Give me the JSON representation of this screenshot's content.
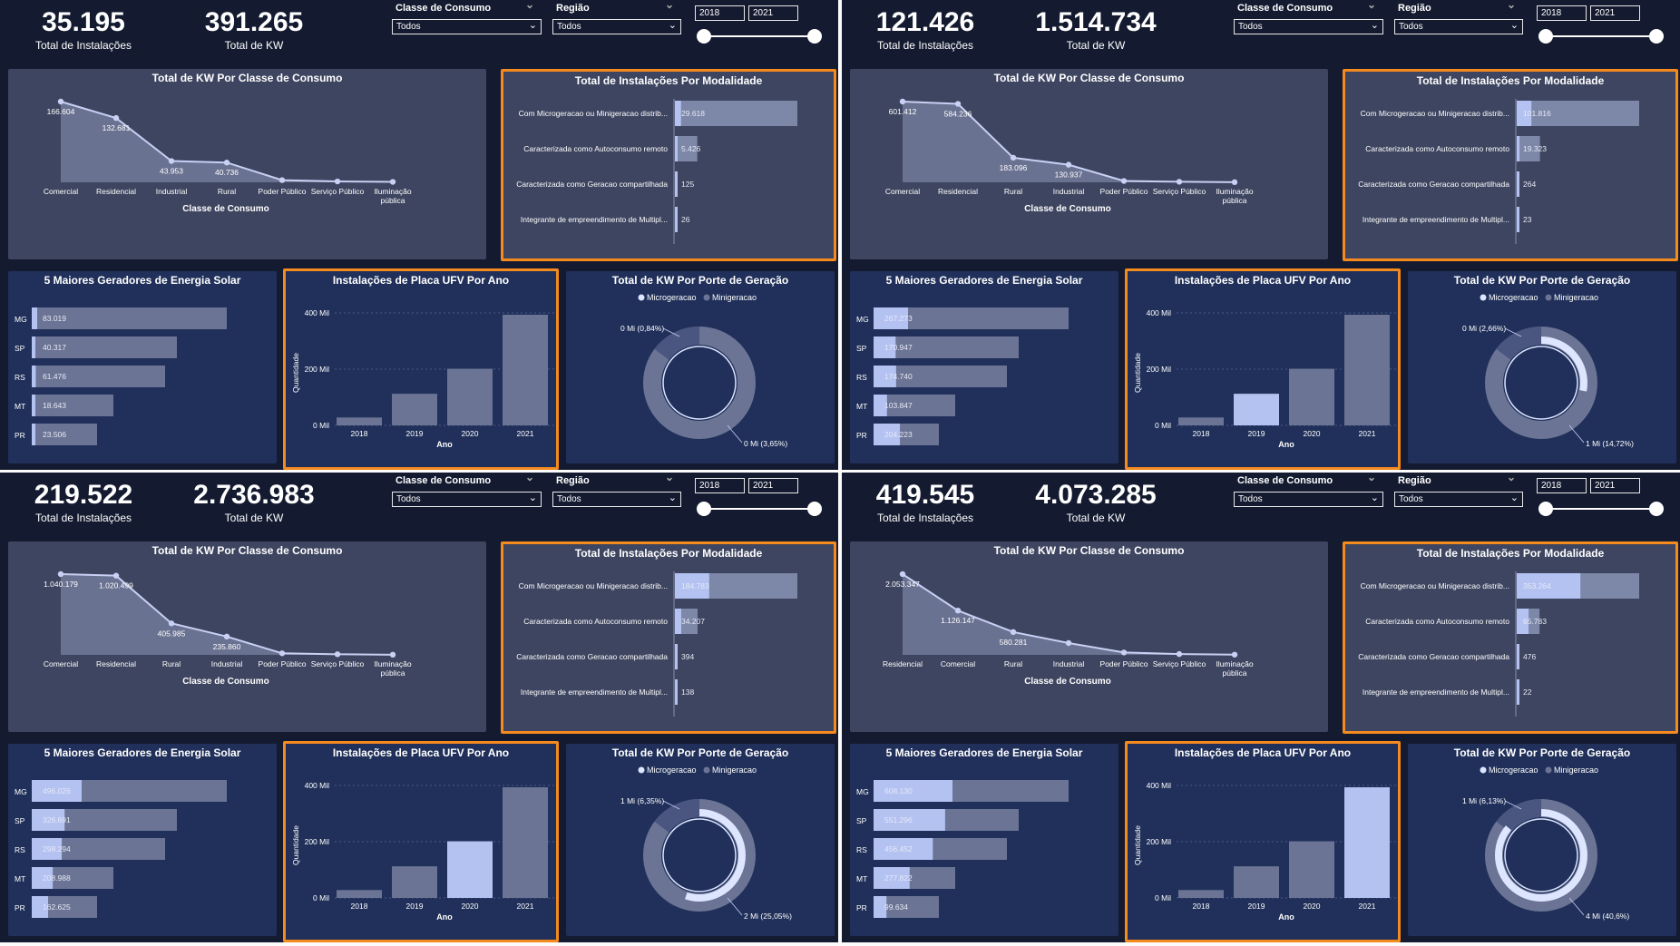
{
  "quadrants": [
    {
      "kpis": [
        {
          "value": "35.195",
          "label": "Total de Instalações"
        },
        {
          "value": "391.265",
          "label": "Total de KW"
        }
      ],
      "filters": {
        "classe_title": "Classe de Consumo",
        "classe_value": "Todos",
        "regiao_title": "Região",
        "regiao_value": "Todos",
        "year_start": "2018",
        "year_end": "2021"
      },
      "kw_classe": {
        "title": "Total de KW Por Classe de Consumo",
        "xlabel": "Classe de Consumo",
        "points": [
          {
            "cat": "Comercial",
            "value": 166604,
            "label": "166.604"
          },
          {
            "cat": "Residencial",
            "value": 132681,
            "label": "132.681"
          },
          {
            "cat": "Industrial",
            "value": 43953,
            "label": "43.953"
          },
          {
            "cat": "Rural",
            "value": 40736,
            "label": "40.736"
          },
          {
            "cat": "Poder Público",
            "value": 4500,
            "label": ""
          },
          {
            "cat": "Serviço Público",
            "value": 1800,
            "label": ""
          },
          {
            "cat": "Iluminação pública",
            "value": 900,
            "label": ""
          }
        ]
      },
      "modalidade": {
        "title": "Total de Instalações Por Modalidade",
        "rows": [
          {
            "cat": "Com Microgeracao ou Minigeracao distrib...",
            "value": 29618,
            "label": "29.618"
          },
          {
            "cat": "Caracterizada como Autoconsumo remoto",
            "value": 5426,
            "label": "5.426"
          },
          {
            "cat": "Caracterizada como Geracao compartilhada",
            "value": 125,
            "label": "125"
          },
          {
            "cat": "Integrante de empreendimento de Multipl...",
            "value": 26,
            "label": "26"
          }
        ]
      },
      "top5": {
        "title": "5 Maiores Geradores de Energia Solar",
        "rows": [
          {
            "cat": "MG",
            "value": 83019,
            "label": "83.019"
          },
          {
            "cat": "SP",
            "value": 40317,
            "label": "40.317"
          },
          {
            "cat": "RS",
            "value": 61476,
            "label": "61.476"
          },
          {
            "cat": "MT",
            "value": 18643,
            "label": "18.643"
          },
          {
            "cat": "PR",
            "value": 23506,
            "label": "23.506"
          }
        ]
      },
      "ano": {
        "title": "Instalações de Placa UFV Por Ano",
        "ylabel": "Quantidade",
        "xlabel": "Ano",
        "ticks": [
          "0 Mil",
          "200 Mil",
          "400 Mil"
        ],
        "highlight": -1,
        "bars": [
          {
            "cat": "2018",
            "value": 30
          },
          {
            "cat": "2019",
            "value": 120
          },
          {
            "cat": "2020",
            "value": 215
          },
          {
            "cat": "2021",
            "value": 420
          }
        ]
      },
      "porte": {
        "title": "Total de KW Por Porte de Geração",
        "legend": [
          "Microgeracao",
          "Minigeracao"
        ],
        "minor_label": "0 Mi (0,84%)",
        "major_label": "0 Mi (3,65%)",
        "micro_pct": 0
      }
    },
    {
      "kpis": [
        {
          "value": "121.426",
          "label": "Total de Instalações"
        },
        {
          "value": "1.514.734",
          "label": "Total de KW"
        }
      ],
      "filters": {
        "classe_title": "Classe de Consumo",
        "classe_value": "Todos",
        "regiao_title": "Região",
        "regiao_value": "Todos",
        "year_start": "2018",
        "year_end": "2021"
      },
      "kw_classe": {
        "title": "Total de KW Por Classe de Consumo",
        "xlabel": "Classe de Consumo",
        "points": [
          {
            "cat": "Comercial",
            "value": 601412,
            "label": "601.412"
          },
          {
            "cat": "Residencial",
            "value": 584236,
            "label": "584.236"
          },
          {
            "cat": "Rural",
            "value": 183096,
            "label": "183.096"
          },
          {
            "cat": "Industrial",
            "value": 130937,
            "label": "130.937"
          },
          {
            "cat": "Poder Público",
            "value": 10000,
            "label": ""
          },
          {
            "cat": "Serviço Público",
            "value": 4000,
            "label": ""
          },
          {
            "cat": "Iluminação pública",
            "value": 1000,
            "label": ""
          }
        ]
      },
      "modalidade": {
        "title": "Total de Instalações Por Modalidade",
        "rows": [
          {
            "cat": "Com Microgeracao ou Minigeracao distrib...",
            "value": 101816,
            "label": "101.816"
          },
          {
            "cat": "Caracterizada como Autoconsumo remoto",
            "value": 19323,
            "label": "19.323"
          },
          {
            "cat": "Caracterizada como Geracao compartilhada",
            "value": 264,
            "label": "264"
          },
          {
            "cat": "Integrante de empreendimento de Multipl...",
            "value": 23,
            "label": "23"
          }
        ]
      },
      "top5": {
        "title": "5 Maiores Geradores de Energia Solar",
        "rows": [
          {
            "cat": "MG",
            "value": 267273,
            "label": "267.273"
          },
          {
            "cat": "SP",
            "value": 170947,
            "label": "170.947"
          },
          {
            "cat": "RS",
            "value": 174740,
            "label": "174.740"
          },
          {
            "cat": "MT",
            "value": 103847,
            "label": "103.847"
          },
          {
            "cat": "PR",
            "value": 204223,
            "label": "204.223"
          }
        ]
      },
      "ano": {
        "title": "Instalações de Placa UFV Por Ano",
        "ylabel": "Quantidade",
        "xlabel": "Ano",
        "ticks": [
          "0 Mil",
          "200 Mil",
          "400 Mil"
        ],
        "highlight": 1,
        "bars": [
          {
            "cat": "2018",
            "value": 30
          },
          {
            "cat": "2019",
            "value": 120
          },
          {
            "cat": "2020",
            "value": 215
          },
          {
            "cat": "2021",
            "value": 420
          }
        ]
      },
      "porte": {
        "title": "Total de KW Por Porte de Geração",
        "legend": [
          "Microgeracao",
          "Minigeracao"
        ],
        "minor_label": "0 Mi (2,66%)",
        "major_label": "1 Mi (14,72%)",
        "micro_pct": 0.28
      }
    },
    {
      "kpis": [
        {
          "value": "219.522",
          "label": "Total de Instalações"
        },
        {
          "value": "2.736.983",
          "label": "Total de KW"
        }
      ],
      "filters": {
        "classe_title": "Classe de Consumo",
        "classe_value": "Todos",
        "regiao_title": "Região",
        "regiao_value": "Todos",
        "year_start": "2018",
        "year_end": "2021"
      },
      "kw_classe": {
        "title": "Total de KW Por Classe de Consumo",
        "xlabel": "Classe de Consumo",
        "points": [
          {
            "cat": "Comercial",
            "value": 1040179,
            "label": "1.040.179"
          },
          {
            "cat": "Residencial",
            "value": 1020499,
            "label": "1.020.499"
          },
          {
            "cat": "Rural",
            "value": 405985,
            "label": "405.985"
          },
          {
            "cat": "Industrial",
            "value": 235860,
            "label": "235.860"
          },
          {
            "cat": "Poder Público",
            "value": 20000,
            "label": ""
          },
          {
            "cat": "Serviço Público",
            "value": 8000,
            "label": ""
          },
          {
            "cat": "Iluminação pública",
            "value": 2000,
            "label": ""
          }
        ]
      },
      "modalidade": {
        "title": "Total de Instalações Por Modalidade",
        "rows": [
          {
            "cat": "Com Microgeracao ou Minigeracao distrib...",
            "value": 184783,
            "label": "184.783"
          },
          {
            "cat": "Caracterizada como Autoconsumo remoto",
            "value": 34207,
            "label": "34.207"
          },
          {
            "cat": "Caracterizada como Geracao compartilhada",
            "value": 394,
            "label": "394"
          },
          {
            "cat": "Integrante de empreendimento de Multipl...",
            "value": 138,
            "label": "138"
          }
        ]
      },
      "top5": {
        "title": "5 Maiores Geradores de Energia Solar",
        "rows": [
          {
            "cat": "MG",
            "value": 496026,
            "label": "496.026"
          },
          {
            "cat": "SP",
            "value": 326691,
            "label": "326.691"
          },
          {
            "cat": "RS",
            "value": 298294,
            "label": "298.294"
          },
          {
            "cat": "MT",
            "value": 208988,
            "label": "208.988"
          },
          {
            "cat": "PR",
            "value": 162625,
            "label": "162.625"
          }
        ]
      },
      "ano": {
        "title": "Instalações de Placa UFV Por Ano",
        "ylabel": "Quantidade",
        "xlabel": "Ano",
        "ticks": [
          "0 Mil",
          "200 Mil",
          "400 Mil"
        ],
        "highlight": 2,
        "bars": [
          {
            "cat": "2018",
            "value": 30
          },
          {
            "cat": "2019",
            "value": 120
          },
          {
            "cat": "2020",
            "value": 215
          },
          {
            "cat": "2021",
            "value": 420
          }
        ]
      },
      "porte": {
        "title": "Total de KW Por Porte de Geração",
        "legend": [
          "Microgeracao",
          "Minigeracao"
        ],
        "minor_label": "1 Mi (6,35%)",
        "major_label": "2 Mi (25,05%)",
        "micro_pct": 0.55
      }
    },
    {
      "kpis": [
        {
          "value": "419.545",
          "label": "Total de Instalações"
        },
        {
          "value": "4.073.285",
          "label": "Total de KW"
        }
      ],
      "filters": {
        "classe_title": "Classe de Consumo",
        "classe_value": "Todos",
        "regiao_title": "Região",
        "regiao_value": "Todos",
        "year_start": "2018",
        "year_end": "2021"
      },
      "kw_classe": {
        "title": "Total de KW Por Classe de Consumo",
        "xlabel": "Classe de Consumo",
        "points": [
          {
            "cat": "Residencial",
            "value": 2053347,
            "label": "2.053.347"
          },
          {
            "cat": "Comercial",
            "value": 1126147,
            "label": "1.126.147"
          },
          {
            "cat": "Rural",
            "value": 580281,
            "label": "580.281"
          },
          {
            "cat": "Industrial",
            "value": 300000,
            "label": ""
          },
          {
            "cat": "Poder Público",
            "value": 60000,
            "label": ""
          },
          {
            "cat": "Serviço Público",
            "value": 20000,
            "label": ""
          },
          {
            "cat": "Iluminação pública",
            "value": 5000,
            "label": ""
          }
        ]
      },
      "modalidade": {
        "title": "Total de Instalações Por Modalidade",
        "rows": [
          {
            "cat": "Com Microgeracao ou Minigeracao distrib...",
            "value": 353264,
            "label": "353.264"
          },
          {
            "cat": "Caracterizada como Autoconsumo remoto",
            "value": 65783,
            "label": "65.783"
          },
          {
            "cat": "Caracterizada como Geracao compartilhada",
            "value": 476,
            "label": "476"
          },
          {
            "cat": "Integrante de empreendimento de Multipl...",
            "value": 22,
            "label": "22"
          }
        ]
      },
      "top5": {
        "title": "5 Maiores Geradores de Energia Solar",
        "rows": [
          {
            "cat": "MG",
            "value": 608130,
            "label": "608.130"
          },
          {
            "cat": "SP",
            "value": 551296,
            "label": "551.296"
          },
          {
            "cat": "RS",
            "value": 456452,
            "label": "456.452"
          },
          {
            "cat": "MT",
            "value": 277822,
            "label": "277.822"
          },
          {
            "cat": "PR",
            "value": 99634,
            "label": "99.634"
          }
        ]
      },
      "ano": {
        "title": "Instalações de Placa UFV Por Ano",
        "ylabel": "Quantidade",
        "xlabel": "Ano",
        "ticks": [
          "0 Mil",
          "200 Mil",
          "400 Mil"
        ],
        "highlight": 3,
        "bars": [
          {
            "cat": "2018",
            "value": 30
          },
          {
            "cat": "2019",
            "value": 120
          },
          {
            "cat": "2020",
            "value": 215
          },
          {
            "cat": "2021",
            "value": 420
          }
        ]
      },
      "porte": {
        "title": "Total de KW Por Porte de Geração",
        "legend": [
          "Microgeracao",
          "Minigeracao"
        ],
        "minor_label": "1 Mi (6,13%)",
        "major_label": "4 Mi (40,6%)",
        "micro_pct": 0.86
      }
    }
  ],
  "colors": {
    "highlight": "#b4c2f2",
    "bar_dark": "#6b7494",
    "bar_mid": "#7d87a8",
    "area": "#6a7291",
    "accent": "#f58a1f",
    "donut_bg": "#6b7494",
    "donut_active": "#dde5ff"
  },
  "chart_data": [
    {
      "type": "area",
      "title": "Total de KW Por Classe de Consumo",
      "xlabel": "Classe de Consumo",
      "categories": [
        "Comercial",
        "Residencial",
        "Industrial",
        "Rural",
        "Poder Público",
        "Serviço Público",
        "Iluminação pública"
      ],
      "values": [
        166604,
        132681,
        43953,
        40736,
        4500,
        1800,
        900
      ]
    },
    {
      "type": "bar",
      "title": "Total de Instalações Por Modalidade",
      "categories": [
        "Com Microgeracao ou Minigeracao distrib...",
        "Caracterizada como Autoconsumo remoto",
        "Caracterizada como Geracao compartilhada",
        "Integrante de empreendimento de Multipl..."
      ],
      "values": [
        29618,
        5426,
        125,
        26
      ]
    },
    {
      "type": "bar",
      "title": "5 Maiores Geradores de Energia Solar",
      "categories": [
        "MG",
        "SP",
        "RS",
        "MT",
        "PR"
      ],
      "values": [
        83019,
        40317,
        61476,
        18643,
        23506
      ]
    },
    {
      "type": "bar",
      "title": "Instalações de Placa UFV Por Ano",
      "xlabel": "Ano",
      "ylabel": "Quantidade",
      "categories": [
        "2018",
        "2019",
        "2020",
        "2021"
      ],
      "values": [
        30,
        120,
        215,
        420
      ],
      "ylim": [
        0,
        420
      ]
    },
    {
      "type": "pie",
      "title": "Total de KW Por Porte de Geração",
      "categories": [
        "Microgeracao",
        "Minigeracao"
      ]
    }
  ]
}
